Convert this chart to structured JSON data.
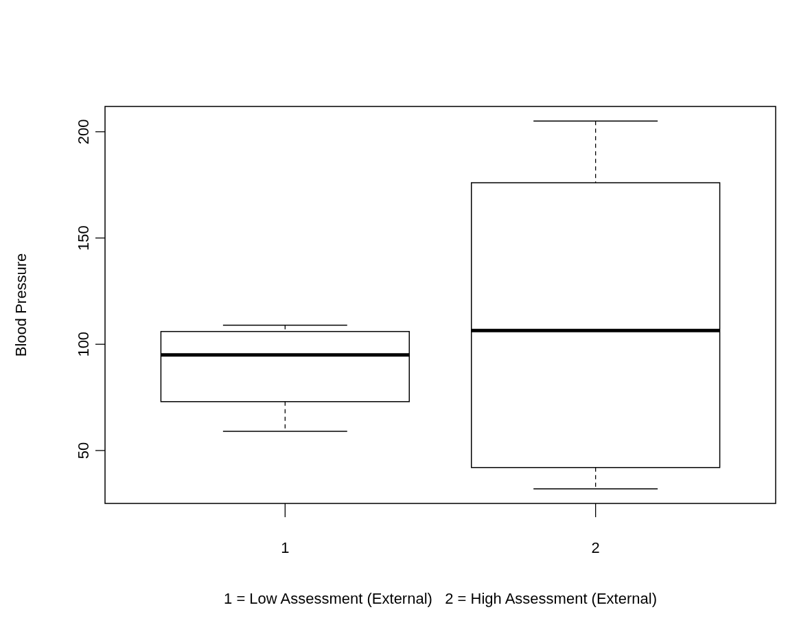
{
  "chart_data": {
    "type": "box",
    "categories": [
      "1",
      "2"
    ],
    "boxes": [
      {
        "low": 59,
        "q1": 73,
        "median": 95,
        "q3": 106,
        "high": 109
      },
      {
        "low": 32,
        "q1": 42,
        "median": 106.5,
        "q3": 176,
        "high": 205
      }
    ],
    "ylabel": "Blood Pressure",
    "xlabel": "1 = Low Assessment (External)   2 = High Assessment (External)",
    "ylim": [
      25.1,
      211.9
    ],
    "yticks": [
      50,
      100,
      150,
      200
    ],
    "grid": false
  }
}
